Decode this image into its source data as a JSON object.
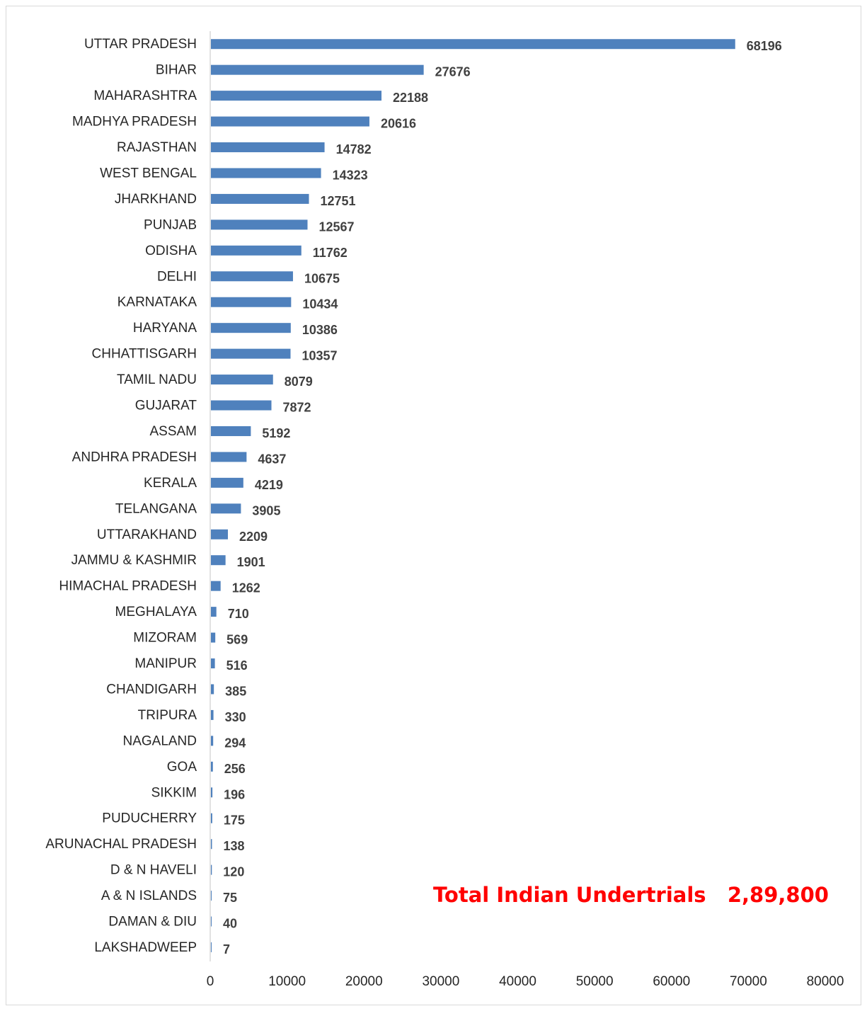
{
  "chart_data": {
    "type": "bar",
    "orientation": "horizontal",
    "categories": [
      "UTTAR PRADESH",
      "BIHAR",
      "MAHARASHTRA",
      "MADHYA PRADESH",
      "RAJASTHAN",
      "WEST BENGAL",
      "JHARKHAND",
      "PUNJAB",
      "ODISHA",
      "DELHI",
      "KARNATAKA",
      "HARYANA",
      "CHHATTISGARH",
      "TAMIL NADU",
      "GUJARAT",
      "ASSAM",
      "ANDHRA PRADESH",
      "KERALA",
      "TELANGANA",
      "UTTARAKHAND",
      "JAMMU & KASHMIR",
      "HIMACHAL PRADESH",
      "MEGHALAYA",
      "MIZORAM",
      "MANIPUR",
      "CHANDIGARH",
      "TRIPURA",
      "NAGALAND",
      "GOA",
      "SIKKIM",
      "PUDUCHERRY",
      "ARUNACHAL PRADESH",
      "D & N HAVELI",
      "A & N ISLANDS",
      "DAMAN & DIU",
      "LAKSHADWEEP"
    ],
    "values": [
      68196,
      27676,
      22188,
      20616,
      14782,
      14323,
      12751,
      12567,
      11762,
      10675,
      10434,
      10386,
      10357,
      8079,
      7872,
      5192,
      4637,
      4219,
      3905,
      2209,
      1901,
      1262,
      710,
      569,
      516,
      385,
      330,
      294,
      256,
      196,
      175,
      138,
      120,
      75,
      40,
      7
    ],
    "xlim": [
      0,
      80000
    ],
    "xticks": [
      0,
      10000,
      20000,
      30000,
      40000,
      50000,
      60000,
      70000,
      80000
    ],
    "bar_color": "#4f81bd",
    "grid": false,
    "legend": "none",
    "annotation": "Total Indian Undertrials   2,89,800"
  }
}
